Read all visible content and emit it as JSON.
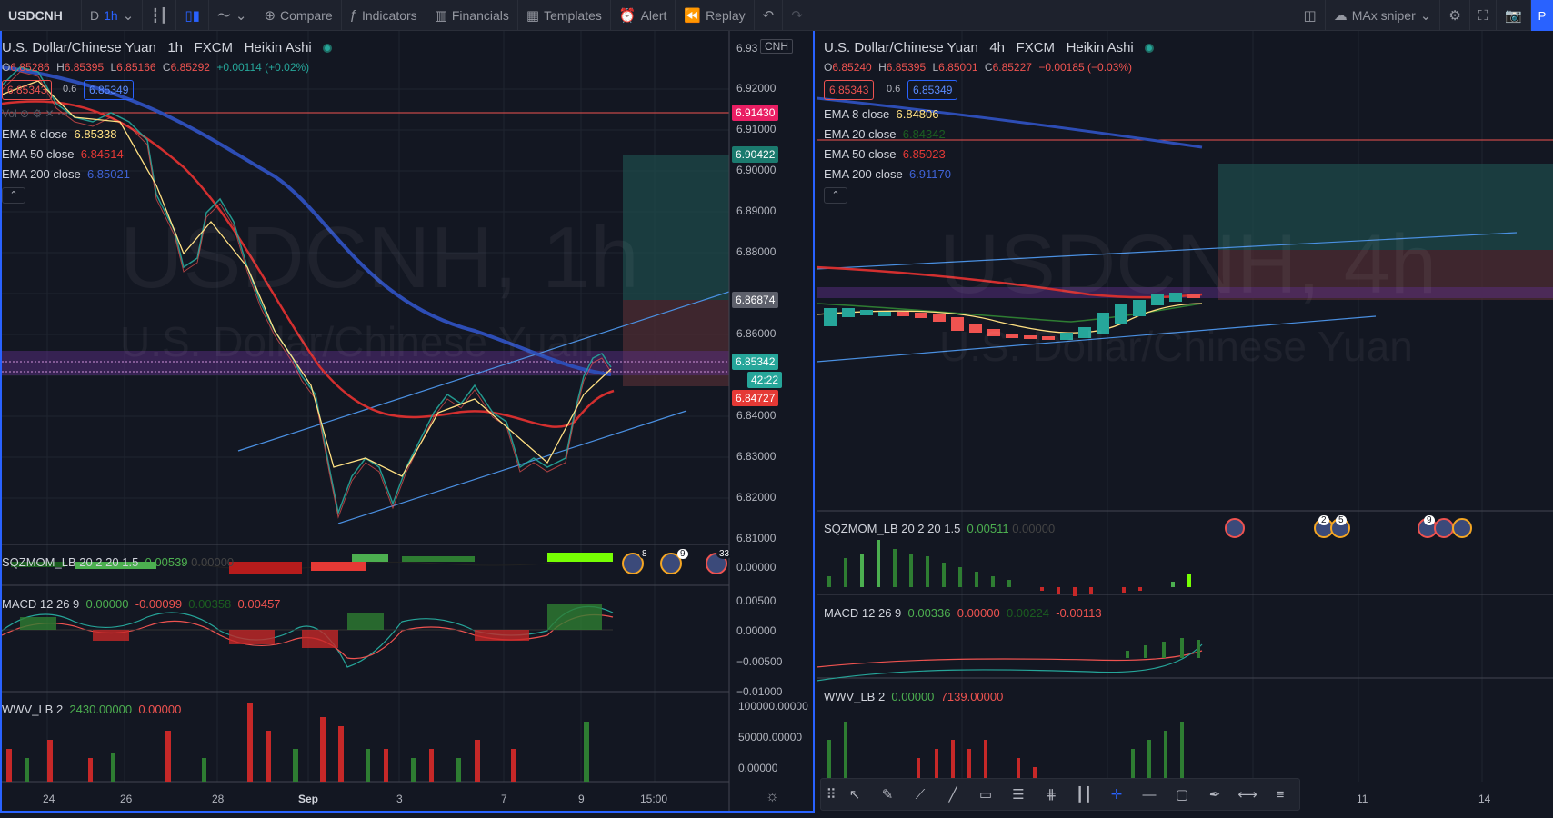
{
  "toolbar": {
    "symbol": "USDCNH",
    "range": "D",
    "interval": "1h",
    "compare": "Compare",
    "indicators": "Indicators",
    "financials": "Financials",
    "templates": "Templates",
    "alert": "Alert",
    "replay": "Replay",
    "layout_name": "MAx sniper",
    "publish": "P"
  },
  "left": {
    "title": "U.S. Dollar/Chinese Yuan",
    "interval": "1h",
    "broker": "FXCM",
    "chart_style": "Heikin Ashi",
    "ohlc": {
      "o_label": "O",
      "o": "6.85286",
      "h_label": "H",
      "h": "6.85395",
      "l_label": "L",
      "l": "6.85166",
      "c_label": "C",
      "c": "6.85292",
      "chg": "+0.00114 (+0.02%)"
    },
    "sell": "6.85343",
    "spread": "0.6",
    "buy": "6.85349",
    "vol_label": "Vol",
    "indicators": [
      {
        "name": "EMA 8 close",
        "value": "6.85338",
        "color": "#ffe082"
      },
      {
        "name": "EMA 50 close",
        "value": "6.84514",
        "color": "#e53935"
      },
      {
        "name": "EMA 200 close",
        "value": "6.85021",
        "color": "#2d4db5"
      }
    ],
    "watermark_symbol": "USDCNH, 1h",
    "watermark_name": "U.S. Dollar/Chinese Yuan",
    "currency": "CNH",
    "price_axis": [
      "6.93",
      "6.92000",
      "6.91000",
      "6.90000",
      "6.89000",
      "6.88000",
      "6.87000",
      "6.86000",
      "6.85000",
      "6.84000",
      "6.83000",
      "6.82000",
      "6.81000"
    ],
    "tags": {
      "red_line": "6.91430",
      "tp": "6.90422",
      "entry": "6.86874",
      "last": "6.85342",
      "countdown": "42:22",
      "sl": "6.84727"
    },
    "sqz": {
      "label": "SQZMOM_LB 20 2 20 1.5",
      "v1": "0.00539",
      "v2": "0.00000"
    },
    "sqz_axis": [
      "0.00000"
    ],
    "macd": {
      "label": "MACD 12 26 9",
      "v1": "0.00000",
      "v2": "-0.00099",
      "v3": "0.00358",
      "v4": "0.00457"
    },
    "macd_axis": [
      "0.00500",
      "0.00000",
      "−0.00500",
      "−0.01000"
    ],
    "wwv": {
      "label": "WWV_LB 2",
      "v1": "2430.00000",
      "v2": "0.00000"
    },
    "wwv_axis": [
      "100000.00000",
      "50000.00000",
      "0.00000"
    ],
    "time_axis": [
      "24",
      "26",
      "28",
      "Sep",
      "3",
      "7",
      "9",
      "15:00"
    ],
    "events": [
      "8",
      "9",
      "33"
    ]
  },
  "right": {
    "title": "U.S. Dollar/Chinese Yuan",
    "interval": "4h",
    "broker": "FXCM",
    "chart_style": "Heikin Ashi",
    "ohlc": {
      "o_label": "O",
      "o": "6.85240",
      "h_label": "H",
      "h": "6.85395",
      "l_label": "L",
      "l": "6.85001",
      "c_label": "C",
      "c": "6.85227",
      "chg": "−0.00185 (−0.03%)"
    },
    "sell": "6.85343",
    "spread": "0.6",
    "buy": "6.85349",
    "indicators": [
      {
        "name": "EMA 8 close",
        "value": "6.84806",
        "color": "#ffe082"
      },
      {
        "name": "EMA 20 close",
        "value": "6.84342",
        "color": "#26a69a"
      },
      {
        "name": "EMA 50 close",
        "value": "6.85023",
        "color": "#e53935"
      },
      {
        "name": "EMA 200 close",
        "value": "6.91170",
        "color": "#2d4db5"
      }
    ],
    "watermark_symbol": "USDCNH, 4h",
    "watermark_name": "U.S. Dollar/Chinese Yuan",
    "sqz": {
      "label": "SQZMOM_LB 20 2 20 1.5",
      "v1": "0.00511",
      "v2": "0.00000"
    },
    "macd": {
      "label": "MACD 12 26 9",
      "v1": "0.00336",
      "v2": "0.00000",
      "v3": "0.00224",
      "v4": "-0.00113"
    },
    "wwv": {
      "label": "WWV_LB 2",
      "v1": "0.00000",
      "v2": "7139.00000"
    },
    "time_axis": [
      "11",
      "14"
    ],
    "events": [
      "2",
      "5",
      "9"
    ]
  },
  "colors": {
    "bg": "#131722",
    "up": "#26a69a",
    "down": "#ef5350",
    "accent": "#2962ff",
    "grid": "#2a2e39"
  }
}
